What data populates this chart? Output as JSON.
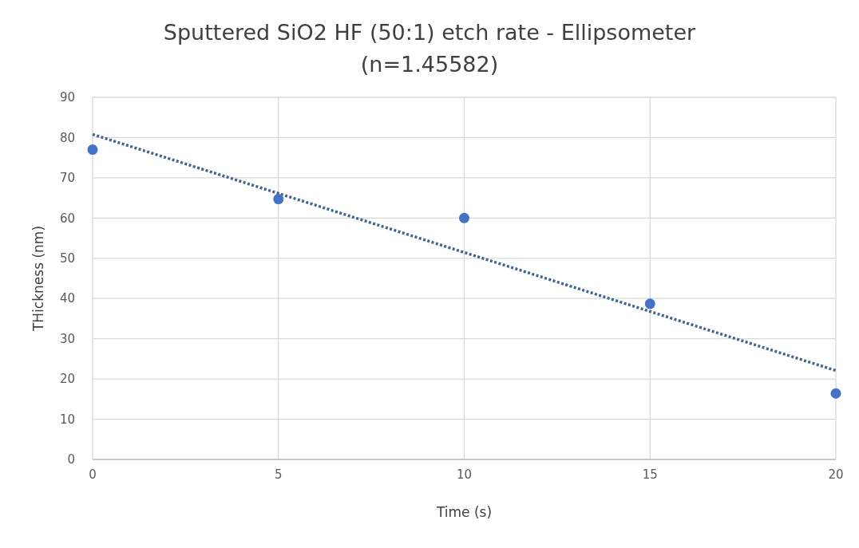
{
  "chart_data": {
    "type": "scatter",
    "title": "Sputtered SiO2 HF (50:1) etch rate - Ellipsometer",
    "subtitle": "(n=1.45582)",
    "xlabel": "Time (s)",
    "ylabel": "THickness (nm)",
    "x": [
      0,
      5,
      10,
      15,
      20
    ],
    "series": [
      {
        "color": "#4472c4",
        "values": [
          77,
          64.7,
          60,
          38.7,
          16.4
        ]
      },
      {
        "type": "line",
        "color": "#44648c",
        "x": [
          0,
          20
        ],
        "values": [
          80.8,
          22.1
        ],
        "line_style": "dotted"
      }
    ],
    "xlim": [
      0,
      20
    ],
    "xticks": [
      0,
      5,
      10,
      15,
      20
    ],
    "ylim": [
      0,
      90
    ],
    "yticks": [
      0,
      10,
      20,
      30,
      40,
      50,
      60,
      70,
      80,
      90
    ],
    "grid": true
  }
}
